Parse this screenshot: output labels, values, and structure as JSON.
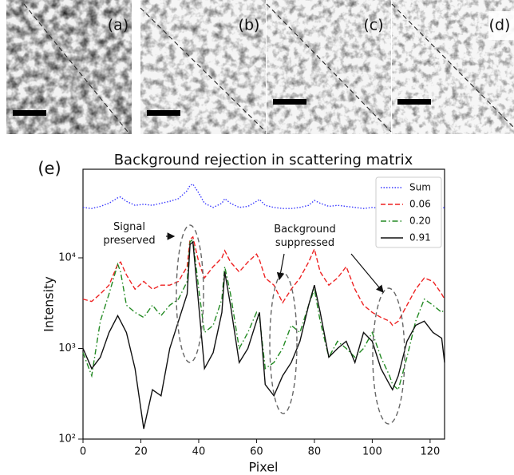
{
  "panels": [
    "(a)",
    "(b)",
    "(c)",
    "(d)"
  ],
  "chart_data": {
    "type": "line",
    "label": "(e)",
    "title": "Background rejection in scattering matrix",
    "xlabel": "Pixel",
    "ylabel": "Intensity",
    "yscale": "log",
    "legend": "upper right",
    "annotations": [
      "Signal preserved",
      "Background suppressed"
    ],
    "xlim": [
      0,
      125
    ],
    "xticks": [
      0,
      20,
      40,
      60,
      80,
      100,
      120
    ],
    "ylim": [
      100,
      95000
    ],
    "yticks": [
      {
        "value": 100,
        "label": "10²"
      },
      {
        "value": 1000,
        "label": "10³"
      },
      {
        "value": 10000,
        "label": "10⁴"
      }
    ],
    "x": [
      0,
      3,
      6,
      9,
      12,
      13,
      15,
      18,
      21,
      24,
      27,
      30,
      33,
      36,
      37,
      38,
      40,
      42,
      45,
      48,
      49,
      51,
      54,
      57,
      60,
      61,
      63,
      66,
      69,
      72,
      75,
      78,
      80,
      82,
      85,
      88,
      91,
      94,
      97,
      100,
      103,
      106,
      107,
      109,
      112,
      115,
      118,
      121,
      124,
      125
    ],
    "series": [
      {
        "name": "Sum",
        "color": "#3a3aff",
        "dash": "dotted",
        "values": [
          36000,
          35000,
          37000,
          40000,
          46000,
          47000,
          42000,
          38000,
          39000,
          38000,
          40000,
          42000,
          45000,
          55000,
          63000,
          65000,
          52000,
          40000,
          36000,
          40000,
          45000,
          40000,
          36000,
          37000,
          42000,
          44000,
          38000,
          36000,
          35000,
          35000,
          36000,
          38000,
          43000,
          40000,
          37000,
          38000,
          37000,
          36000,
          35000,
          36000,
          35000,
          34000,
          33000,
          33000,
          34000,
          33000,
          33000,
          34000,
          35000,
          36000
        ]
      },
      {
        "name": "0.06",
        "color": "#ee2222",
        "dash": "dashed",
        "values": [
          3500,
          3300,
          4000,
          5000,
          8500,
          9000,
          6500,
          4500,
          5500,
          4500,
          5000,
          5000,
          5500,
          8000,
          16000,
          17000,
          9000,
          6000,
          8000,
          10000,
          12000,
          9000,
          7000,
          9000,
          11000,
          9500,
          6000,
          5000,
          3200,
          4500,
          6000,
          9000,
          12500,
          7000,
          5000,
          6000,
          8000,
          4500,
          3000,
          2500,
          2200,
          2000,
          1800,
          2000,
          3000,
          4500,
          6000,
          5500,
          4000,
          3500
        ]
      },
      {
        "name": "0.20",
        "color": "#238a23",
        "dash": "dashdot",
        "values": [
          900,
          500,
          2000,
          4000,
          8500,
          7000,
          3000,
          2500,
          2200,
          3000,
          2300,
          3000,
          3500,
          5500,
          15000,
          16000,
          4500,
          1500,
          1800,
          3500,
          8000,
          4000,
          1000,
          1500,
          2500,
          2200,
          600,
          700,
          1000,
          1800,
          1500,
          3000,
          4500,
          2000,
          800,
          1200,
          1000,
          800,
          1000,
          1500,
          800,
          500,
          400,
          350,
          800,
          2000,
          3500,
          3000,
          2500,
          2700
        ]
      },
      {
        "name": "0.91",
        "color": "#111111",
        "dash": "solid",
        "values": [
          1000,
          600,
          800,
          1500,
          2300,
          2000,
          1500,
          600,
          130,
          350,
          300,
          1000,
          2000,
          4000,
          14000,
          15000,
          3000,
          600,
          900,
          2500,
          7000,
          3000,
          700,
          1000,
          2000,
          2500,
          400,
          300,
          500,
          700,
          1200,
          3000,
          5000,
          2500,
          800,
          1000,
          1200,
          700,
          1500,
          1200,
          600,
          400,
          350,
          500,
          1200,
          1800,
          2000,
          1500,
          1300,
          700
        ]
      }
    ]
  }
}
